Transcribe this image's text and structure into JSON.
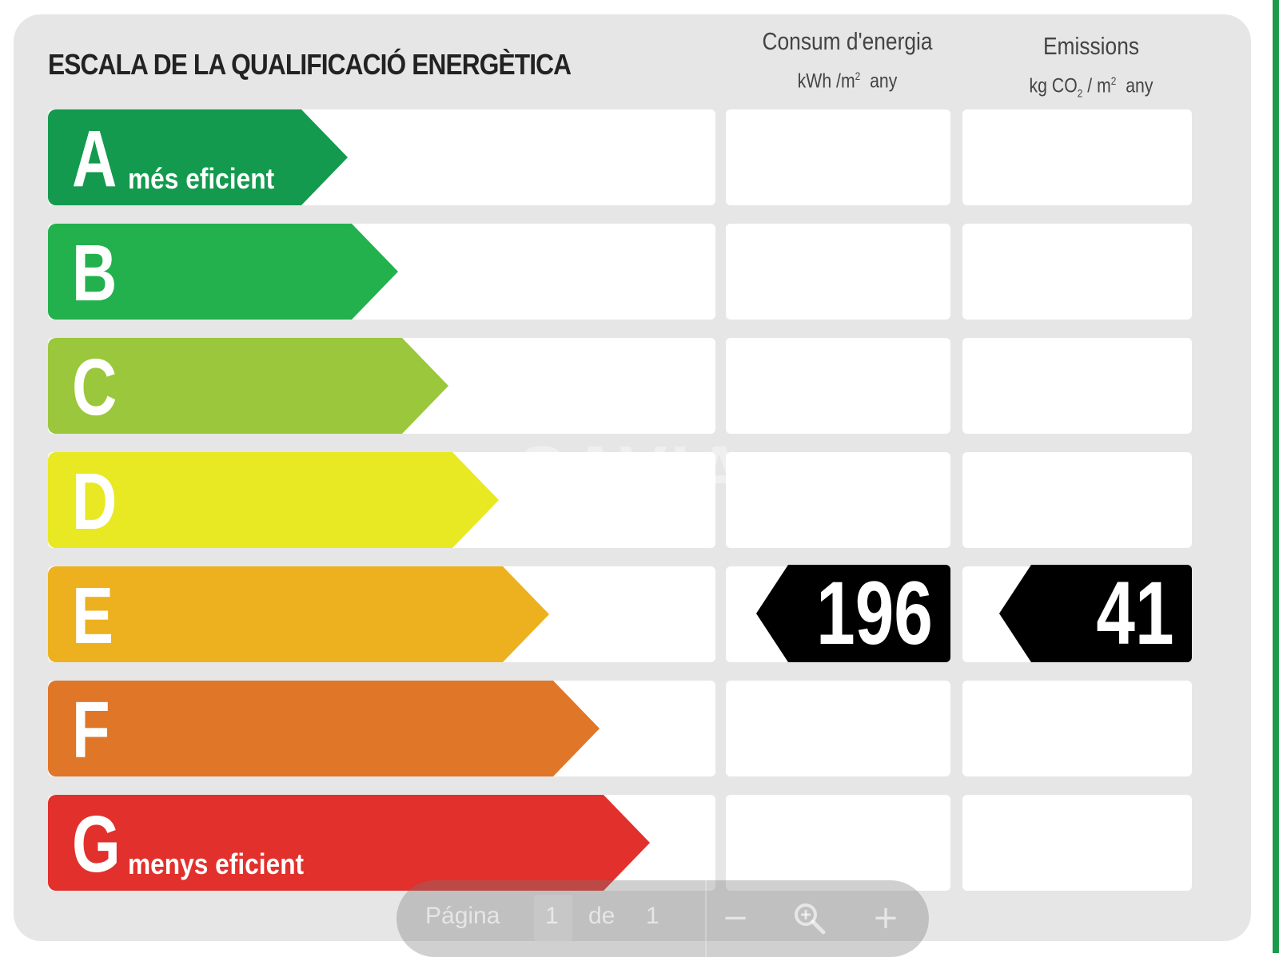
{
  "title": "ESCALA DE LA QUALIFICACIÓ ENERGÈTICA",
  "columns": {
    "energy": {
      "title": "Consum d'energia",
      "unit_prefix": "kWh /m",
      "unit_sup": "2",
      "unit_suffix": "any"
    },
    "emissions": {
      "title": "Emissions",
      "unit_prefix": "kg CO",
      "unit_sub": "2",
      "unit_mid": " / m",
      "unit_sup": "2",
      "unit_suffix": "any"
    }
  },
  "ratings": [
    {
      "letter": "A",
      "sublabel": "més eficient",
      "color": "#139a4e"
    },
    {
      "letter": "B",
      "sublabel": "",
      "color": "#22b14d"
    },
    {
      "letter": "C",
      "sublabel": "",
      "color": "#9ac73b"
    },
    {
      "letter": "D",
      "sublabel": "",
      "color": "#e8e823"
    },
    {
      "letter": "E",
      "sublabel": "",
      "color": "#edb120"
    },
    {
      "letter": "F",
      "sublabel": "",
      "color": "#e07628"
    },
    {
      "letter": "G",
      "sublabel": "menys eficient",
      "color": "#e2302c"
    }
  ],
  "result": {
    "rating": "E",
    "energy_value": "196",
    "emissions_value": "41"
  },
  "watermark": "SAVIA",
  "toolbar": {
    "page_label": "Página",
    "current_page": "1",
    "of_label": "de",
    "total_pages": "1",
    "zoom_out_icon": "−",
    "zoom_icon": "zoom-icon",
    "zoom_in_icon": "+"
  },
  "accent_color": "#1a9a4a"
}
